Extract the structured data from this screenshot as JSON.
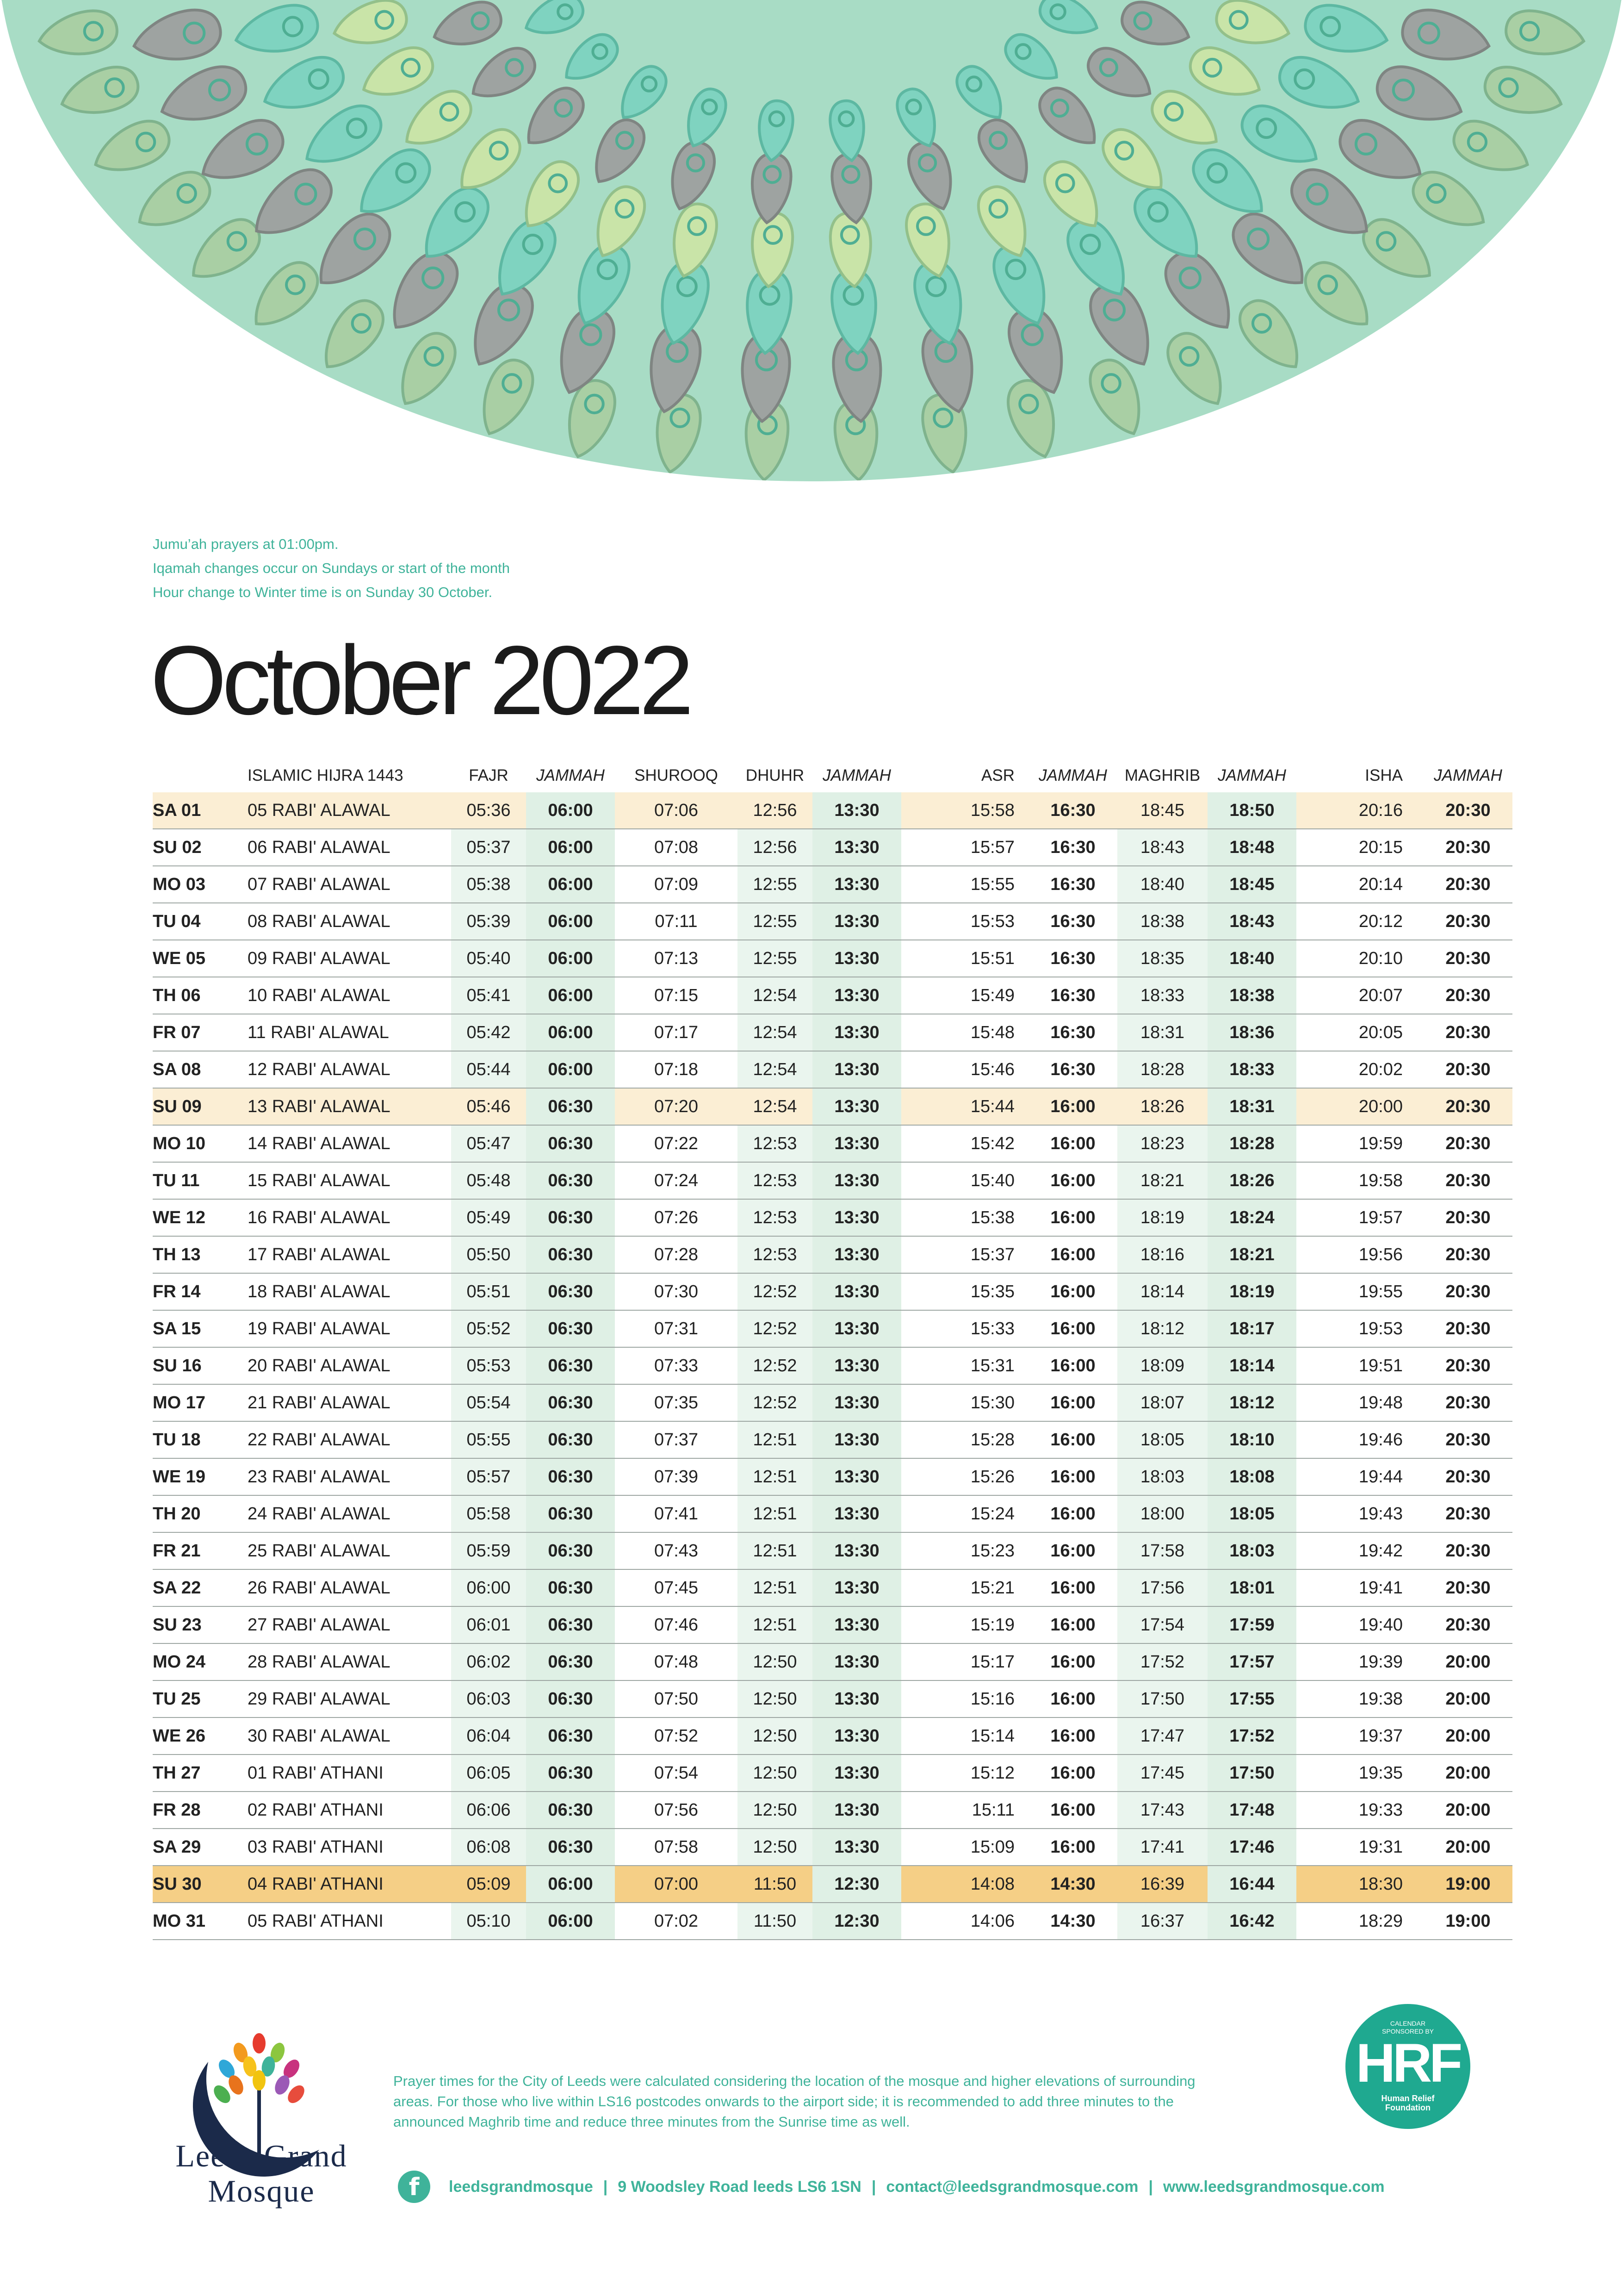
{
  "notes": [
    "Jumu’ah prayers at 01:00pm.",
    "Iqamah changes occur on Sundays or start of the month",
    "Hour change to Winter time is on Sunday 30 October."
  ],
  "month_title": "October 2022",
  "table": {
    "headers": {
      "hijra": "ISLAMIC HIJRA 1443",
      "fajr": "FAJR",
      "fajr_j": "JAMMAH",
      "shurooq": "SHUROOQ",
      "dhuhr": "DHUHR",
      "dhuhr_j": "JAMMAH",
      "asr": "ASR",
      "asr_j": "JAMMAH",
      "maghrib": "MAGHRIB",
      "maghrib_j": "JAMMAH",
      "isha": "ISHA",
      "isha_j": "JAMMAH"
    },
    "rows": [
      {
        "day": "SA 01",
        "hijri": "05 RABI' ALAWAL",
        "fajr": "05:36",
        "fajr_j": "06:00",
        "shurooq": "07:06",
        "dhuhr": "12:56",
        "dhuhr_j": "13:30",
        "asr": "15:58",
        "asr_j": "16:30",
        "maghrib": "18:45",
        "maghrib_j": "18:50",
        "isha": "20:16",
        "isha_j": "20:30",
        "highlight": "light"
      },
      {
        "day": "SU 02",
        "hijri": "06 RABI' ALAWAL",
        "fajr": "05:37",
        "fajr_j": "06:00",
        "shurooq": "07:08",
        "dhuhr": "12:56",
        "dhuhr_j": "13:30",
        "asr": "15:57",
        "asr_j": "16:30",
        "maghrib": "18:43",
        "maghrib_j": "18:48",
        "isha": "20:15",
        "isha_j": "20:30",
        "highlight": "none"
      },
      {
        "day": "MO 03",
        "hijri": "07 RABI' ALAWAL",
        "fajr": "05:38",
        "fajr_j": "06:00",
        "shurooq": "07:09",
        "dhuhr": "12:55",
        "dhuhr_j": "13:30",
        "asr": "15:55",
        "asr_j": "16:30",
        "maghrib": "18:40",
        "maghrib_j": "18:45",
        "isha": "20:14",
        "isha_j": "20:30",
        "highlight": "none"
      },
      {
        "day": "TU 04",
        "hijri": "08 RABI' ALAWAL",
        "fajr": "05:39",
        "fajr_j": "06:00",
        "shurooq": "07:11",
        "dhuhr": "12:55",
        "dhuhr_j": "13:30",
        "asr": "15:53",
        "asr_j": "16:30",
        "maghrib": "18:38",
        "maghrib_j": "18:43",
        "isha": "20:12",
        "isha_j": "20:30",
        "highlight": "none"
      },
      {
        "day": "WE 05",
        "hijri": "09 RABI' ALAWAL",
        "fajr": "05:40",
        "fajr_j": "06:00",
        "shurooq": "07:13",
        "dhuhr": "12:55",
        "dhuhr_j": "13:30",
        "asr": "15:51",
        "asr_j": "16:30",
        "maghrib": "18:35",
        "maghrib_j": "18:40",
        "isha": "20:10",
        "isha_j": "20:30",
        "highlight": "none"
      },
      {
        "day": "TH 06",
        "hijri": "10 RABI' ALAWAL",
        "fajr": "05:41",
        "fajr_j": "06:00",
        "shurooq": "07:15",
        "dhuhr": "12:54",
        "dhuhr_j": "13:30",
        "asr": "15:49",
        "asr_j": "16:30",
        "maghrib": "18:33",
        "maghrib_j": "18:38",
        "isha": "20:07",
        "isha_j": "20:30",
        "highlight": "none"
      },
      {
        "day": "FR 07",
        "hijri": "11 RABI' ALAWAL",
        "fajr": "05:42",
        "fajr_j": "06:00",
        "shurooq": "07:17",
        "dhuhr": "12:54",
        "dhuhr_j": "13:30",
        "asr": "15:48",
        "asr_j": "16:30",
        "maghrib": "18:31",
        "maghrib_j": "18:36",
        "isha": "20:05",
        "isha_j": "20:30",
        "highlight": "none"
      },
      {
        "day": "SA 08",
        "hijri": "12 RABI' ALAWAL",
        "fajr": "05:44",
        "fajr_j": "06:00",
        "shurooq": "07:18",
        "dhuhr": "12:54",
        "dhuhr_j": "13:30",
        "asr": "15:46",
        "asr_j": "16:30",
        "maghrib": "18:28",
        "maghrib_j": "18:33",
        "isha": "20:02",
        "isha_j": "20:30",
        "highlight": "none"
      },
      {
        "day": "SU 09",
        "hijri": "13 RABI' ALAWAL",
        "fajr": "05:46",
        "fajr_j": "06:30",
        "shurooq": "07:20",
        "dhuhr": "12:54",
        "dhuhr_j": "13:30",
        "asr": "15:44",
        "asr_j": "16:00",
        "maghrib": "18:26",
        "maghrib_j": "18:31",
        "isha": "20:00",
        "isha_j": "20:30",
        "highlight": "light"
      },
      {
        "day": "MO 10",
        "hijri": "14 RABI' ALAWAL",
        "fajr": "05:47",
        "fajr_j": "06:30",
        "shurooq": "07:22",
        "dhuhr": "12:53",
        "dhuhr_j": "13:30",
        "asr": "15:42",
        "asr_j": "16:00",
        "maghrib": "18:23",
        "maghrib_j": "18:28",
        "isha": "19:59",
        "isha_j": "20:30",
        "highlight": "none"
      },
      {
        "day": "TU 11",
        "hijri": "15 RABI' ALAWAL",
        "fajr": "05:48",
        "fajr_j": "06:30",
        "shurooq": "07:24",
        "dhuhr": "12:53",
        "dhuhr_j": "13:30",
        "asr": "15:40",
        "asr_j": "16:00",
        "maghrib": "18:21",
        "maghrib_j": "18:26",
        "isha": "19:58",
        "isha_j": "20:30",
        "highlight": "none"
      },
      {
        "day": "WE 12",
        "hijri": "16 RABI' ALAWAL",
        "fajr": "05:49",
        "fajr_j": "06:30",
        "shurooq": "07:26",
        "dhuhr": "12:53",
        "dhuhr_j": "13:30",
        "asr": "15:38",
        "asr_j": "16:00",
        "maghrib": "18:19",
        "maghrib_j": "18:24",
        "isha": "19:57",
        "isha_j": "20:30",
        "highlight": "none"
      },
      {
        "day": "TH 13",
        "hijri": "17 RABI' ALAWAL",
        "fajr": "05:50",
        "fajr_j": "06:30",
        "shurooq": "07:28",
        "dhuhr": "12:53",
        "dhuhr_j": "13:30",
        "asr": "15:37",
        "asr_j": "16:00",
        "maghrib": "18:16",
        "maghrib_j": "18:21",
        "isha": "19:56",
        "isha_j": "20:30",
        "highlight": "none"
      },
      {
        "day": "FR 14",
        "hijri": "18 RABI' ALAWAL",
        "fajr": "05:51",
        "fajr_j": "06:30",
        "shurooq": "07:30",
        "dhuhr": "12:52",
        "dhuhr_j": "13:30",
        "asr": "15:35",
        "asr_j": "16:00",
        "maghrib": "18:14",
        "maghrib_j": "18:19",
        "isha": "19:55",
        "isha_j": "20:30",
        "highlight": "none"
      },
      {
        "day": "SA 15",
        "hijri": "19 RABI' ALAWAL",
        "fajr": "05:52",
        "fajr_j": "06:30",
        "shurooq": "07:31",
        "dhuhr": "12:52",
        "dhuhr_j": "13:30",
        "asr": "15:33",
        "asr_j": "16:00",
        "maghrib": "18:12",
        "maghrib_j": "18:17",
        "isha": "19:53",
        "isha_j": "20:30",
        "highlight": "none"
      },
      {
        "day": "SU 16",
        "hijri": "20 RABI' ALAWAL",
        "fajr": "05:53",
        "fajr_j": "06:30",
        "shurooq": "07:33",
        "dhuhr": "12:52",
        "dhuhr_j": "13:30",
        "asr": "15:31",
        "asr_j": "16:00",
        "maghrib": "18:09",
        "maghrib_j": "18:14",
        "isha": "19:51",
        "isha_j": "20:30",
        "highlight": "none"
      },
      {
        "day": "MO 17",
        "hijri": "21 RABI' ALAWAL",
        "fajr": "05:54",
        "fajr_j": "06:30",
        "shurooq": "07:35",
        "dhuhr": "12:52",
        "dhuhr_j": "13:30",
        "asr": "15:30",
        "asr_j": "16:00",
        "maghrib": "18:07",
        "maghrib_j": "18:12",
        "isha": "19:48",
        "isha_j": "20:30",
        "highlight": "none"
      },
      {
        "day": "TU 18",
        "hijri": "22 RABI' ALAWAL",
        "fajr": "05:55",
        "fajr_j": "06:30",
        "shurooq": "07:37",
        "dhuhr": "12:51",
        "dhuhr_j": "13:30",
        "asr": "15:28",
        "asr_j": "16:00",
        "maghrib": "18:05",
        "maghrib_j": "18:10",
        "isha": "19:46",
        "isha_j": "20:30",
        "highlight": "none"
      },
      {
        "day": "WE 19",
        "hijri": "23 RABI' ALAWAL",
        "fajr": "05:57",
        "fajr_j": "06:30",
        "shurooq": "07:39",
        "dhuhr": "12:51",
        "dhuhr_j": "13:30",
        "asr": "15:26",
        "asr_j": "16:00",
        "maghrib": "18:03",
        "maghrib_j": "18:08",
        "isha": "19:44",
        "isha_j": "20:30",
        "highlight": "none"
      },
      {
        "day": "TH 20",
        "hijri": "24 RABI' ALAWAL",
        "fajr": "05:58",
        "fajr_j": "06:30",
        "shurooq": "07:41",
        "dhuhr": "12:51",
        "dhuhr_j": "13:30",
        "asr": "15:24",
        "asr_j": "16:00",
        "maghrib": "18:00",
        "maghrib_j": "18:05",
        "isha": "19:43",
        "isha_j": "20:30",
        "highlight": "none"
      },
      {
        "day": "FR 21",
        "hijri": "25 RABI' ALAWAL",
        "fajr": "05:59",
        "fajr_j": "06:30",
        "shurooq": "07:43",
        "dhuhr": "12:51",
        "dhuhr_j": "13:30",
        "asr": "15:23",
        "asr_j": "16:00",
        "maghrib": "17:58",
        "maghrib_j": "18:03",
        "isha": "19:42",
        "isha_j": "20:30",
        "highlight": "none"
      },
      {
        "day": "SA 22",
        "hijri": "26 RABI' ALAWAL",
        "fajr": "06:00",
        "fajr_j": "06:30",
        "shurooq": "07:45",
        "dhuhr": "12:51",
        "dhuhr_j": "13:30",
        "asr": "15:21",
        "asr_j": "16:00",
        "maghrib": "17:56",
        "maghrib_j": "18:01",
        "isha": "19:41",
        "isha_j": "20:30",
        "highlight": "none"
      },
      {
        "day": "SU 23",
        "hijri": "27 RABI' ALAWAL",
        "fajr": "06:01",
        "fajr_j": "06:30",
        "shurooq": "07:46",
        "dhuhr": "12:51",
        "dhuhr_j": "13:30",
        "asr": "15:19",
        "asr_j": "16:00",
        "maghrib": "17:54",
        "maghrib_j": "17:59",
        "isha": "19:40",
        "isha_j": "20:30",
        "highlight": "none"
      },
      {
        "day": "MO 24",
        "hijri": "28 RABI' ALAWAL",
        "fajr": "06:02",
        "fajr_j": "06:30",
        "shurooq": "07:48",
        "dhuhr": "12:50",
        "dhuhr_j": "13:30",
        "asr": "15:17",
        "asr_j": "16:00",
        "maghrib": "17:52",
        "maghrib_j": "17:57",
        "isha": "19:39",
        "isha_j": "20:00",
        "highlight": "none"
      },
      {
        "day": "TU 25",
        "hijri": "29 RABI' ALAWAL",
        "fajr": "06:03",
        "fajr_j": "06:30",
        "shurooq": "07:50",
        "dhuhr": "12:50",
        "dhuhr_j": "13:30",
        "asr": "15:16",
        "asr_j": "16:00",
        "maghrib": "17:50",
        "maghrib_j": "17:55",
        "isha": "19:38",
        "isha_j": "20:00",
        "highlight": "none"
      },
      {
        "day": "WE 26",
        "hijri": "30 RABI' ALAWAL",
        "fajr": "06:04",
        "fajr_j": "06:30",
        "shurooq": "07:52",
        "dhuhr": "12:50",
        "dhuhr_j": "13:30",
        "asr": "15:14",
        "asr_j": "16:00",
        "maghrib": "17:47",
        "maghrib_j": "17:52",
        "isha": "19:37",
        "isha_j": "20:00",
        "highlight": "none"
      },
      {
        "day": "TH 27",
        "hijri": "01 RABI' ATHANI",
        "fajr": "06:05",
        "fajr_j": "06:30",
        "shurooq": "07:54",
        "dhuhr": "12:50",
        "dhuhr_j": "13:30",
        "asr": "15:12",
        "asr_j": "16:00",
        "maghrib": "17:45",
        "maghrib_j": "17:50",
        "isha": "19:35",
        "isha_j": "20:00",
        "highlight": "none"
      },
      {
        "day": "FR 28",
        "hijri": "02 RABI' ATHANI",
        "fajr": "06:06",
        "fajr_j": "06:30",
        "shurooq": "07:56",
        "dhuhr": "12:50",
        "dhuhr_j": "13:30",
        "asr": "15:11",
        "asr_j": "16:00",
        "maghrib": "17:43",
        "maghrib_j": "17:48",
        "isha": "19:33",
        "isha_j": "20:00",
        "highlight": "none"
      },
      {
        "day": "SA 29",
        "hijri": "03 RABI' ATHANI",
        "fajr": "06:08",
        "fajr_j": "06:30",
        "shurooq": "07:58",
        "dhuhr": "12:50",
        "dhuhr_j": "13:30",
        "asr": "15:09",
        "asr_j": "16:00",
        "maghrib": "17:41",
        "maghrib_j": "17:46",
        "isha": "19:31",
        "isha_j": "20:00",
        "highlight": "none"
      },
      {
        "day": "SU 30",
        "hijri": "04 RABI' ATHANI",
        "fajr": "05:09",
        "fajr_j": "06:00",
        "shurooq": "07:00",
        "dhuhr": "11:50",
        "dhuhr_j": "12:30",
        "asr": "14:08",
        "asr_j": "14:30",
        "maghrib": "16:39",
        "maghrib_j": "16:44",
        "isha": "18:30",
        "isha_j": "19:00",
        "highlight": "strong"
      },
      {
        "day": "MO 31",
        "hijri": "05 RABI' ATHANI",
        "fajr": "05:10",
        "fajr_j": "06:00",
        "shurooq": "07:02",
        "dhuhr": "11:50",
        "dhuhr_j": "12:30",
        "asr": "14:06",
        "asr_j": "14:30",
        "maghrib": "16:37",
        "maghrib_j": "16:42",
        "isha": "18:29",
        "isha_j": "19:00",
        "highlight": "none"
      }
    ]
  },
  "logo": {
    "line1": "Leeds Grand",
    "line2": "Mosque"
  },
  "disclaimer": "Prayer times for the City of Leeds were calculated considering the location of the mosque and  higher elevations of surrounding areas. For those who live within LS16 postcodes onwards to the airport side; it is recommended to add three minutes to the announced Maghrib time and reduce three minutes from the Sunrise time as well.",
  "sponsor": {
    "top1": "CALENDAR",
    "top2": "SPONSORED BY",
    "big": "HRF",
    "sub1": "Human Relief",
    "sub2": "Foundation"
  },
  "contact": {
    "facebook_icon": "facebook-icon",
    "handle": "leedsgrandmosque",
    "address": "9 Woodsley Road leeds LS6 1SN",
    "email": "contact@leedsgrandmosque.com",
    "website": "www.leedsgrandmosque.com",
    "separator": "|"
  },
  "colors": {
    "accent": "#3fb39a",
    "highlight_light": "#fbeed4",
    "highlight_strong": "#f5cf86",
    "time_cell": "#eaf5ee"
  }
}
